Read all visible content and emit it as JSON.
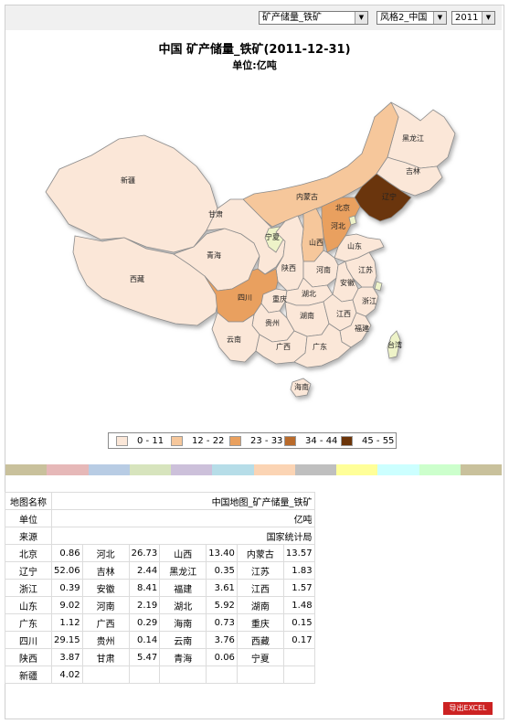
{
  "selectors": {
    "indicator": "矿产储量_铁矿",
    "style": "风格2_中国",
    "year": "2011"
  },
  "title": "中国 矿产储量_铁矿(2011-12-31)",
  "unit_line": "单位:亿吨",
  "legend": [
    {
      "label": "0 - 11",
      "color": "#fbe7d8"
    },
    {
      "label": "12 - 22",
      "color": "#f6c79b"
    },
    {
      "label": "23 - 33",
      "color": "#e9a05e"
    },
    {
      "label": "34 - 44",
      "color": "#b96a2a"
    },
    {
      "label": "45 - 55",
      "color": "#6b3408"
    }
  ],
  "provinces": [
    {
      "name": "黑龙江",
      "value": 0.35
    },
    {
      "name": "吉林",
      "value": 2.44
    },
    {
      "name": "辽宁",
      "value": 52.06
    },
    {
      "name": "内蒙古",
      "value": 13.57
    },
    {
      "name": "新疆",
      "value": 4.02
    },
    {
      "name": "西藏",
      "value": 0.17
    },
    {
      "name": "青海",
      "value": 0.06
    },
    {
      "name": "甘肃",
      "value": 5.47
    },
    {
      "name": "宁夏",
      "value": null
    },
    {
      "name": "北京",
      "value": 0.86
    },
    {
      "name": "河北",
      "value": 26.73
    },
    {
      "name": "山西",
      "value": 13.4
    },
    {
      "name": "山东",
      "value": 9.02
    },
    {
      "name": "陕西",
      "value": 3.87
    },
    {
      "name": "河南",
      "value": 2.19
    },
    {
      "name": "安徽",
      "value": 8.41
    },
    {
      "name": "四川",
      "value": 29.15
    },
    {
      "name": "重庆",
      "value": 0.15
    },
    {
      "name": "湖北",
      "value": 5.92
    },
    {
      "name": "湖南",
      "value": 1.48
    },
    {
      "name": "江西",
      "value": 1.57
    },
    {
      "name": "浙江",
      "value": 0.39
    },
    {
      "name": "江苏",
      "value": 1.83
    },
    {
      "name": "福建",
      "value": 3.61
    },
    {
      "name": "贵州",
      "value": 0.14
    },
    {
      "name": "云南",
      "value": 3.76
    },
    {
      "name": "广西",
      "value": 0.29
    },
    {
      "name": "广东",
      "value": 1.12
    },
    {
      "name": "海南",
      "value": 0.73
    },
    {
      "name": "天津",
      "value": null
    },
    {
      "name": "上海",
      "value": null
    },
    {
      "name": "台湾",
      "value": null
    }
  ],
  "strip_colors": [
    "#c9c19c",
    "#e6b8b8",
    "#b8cce4",
    "#d7e4bd",
    "#ccc0da",
    "#b6dde8",
    "#fbd4b4",
    "#bfbfbf",
    "#ffff99",
    "#ccffff",
    "#ccffcc",
    "#c9c19c"
  ],
  "table": {
    "rows_meta": [
      {
        "key": "地图名称",
        "value": "中国地图_矿产储量_铁矿"
      },
      {
        "key": "单位",
        "value": "亿吨"
      },
      {
        "key": "来源",
        "value": "国家统计局"
      }
    ],
    "grid": [
      [
        [
          "北京",
          "0.86"
        ],
        [
          "河北",
          "26.73"
        ],
        [
          "山西",
          "13.40"
        ],
        [
          "内蒙古",
          "13.57"
        ]
      ],
      [
        [
          "辽宁",
          "52.06"
        ],
        [
          "吉林",
          "2.44"
        ],
        [
          "黑龙江",
          "0.35"
        ],
        [
          "江苏",
          "1.83"
        ]
      ],
      [
        [
          "浙江",
          "0.39"
        ],
        [
          "安徽",
          "8.41"
        ],
        [
          "福建",
          "3.61"
        ],
        [
          "江西",
          "1.57"
        ]
      ],
      [
        [
          "山东",
          "9.02"
        ],
        [
          "河南",
          "2.19"
        ],
        [
          "湖北",
          "5.92"
        ],
        [
          "湖南",
          "1.48"
        ]
      ],
      [
        [
          "广东",
          "1.12"
        ],
        [
          "广西",
          "0.29"
        ],
        [
          "海南",
          "0.73"
        ],
        [
          "重庆",
          "0.15"
        ]
      ],
      [
        [
          "四川",
          "29.15"
        ],
        [
          "贵州",
          "0.14"
        ],
        [
          "云南",
          "3.76"
        ],
        [
          "西藏",
          "0.17"
        ]
      ],
      [
        [
          "陕西",
          "3.87"
        ],
        [
          "甘肃",
          "5.47"
        ],
        [
          "青海",
          "0.06"
        ],
        [
          "宁夏",
          ""
        ]
      ],
      [
        [
          "新疆",
          "4.02"
        ],
        [
          "",
          ""
        ],
        [
          "",
          ""
        ],
        [
          "",
          ""
        ]
      ]
    ]
  },
  "export_label": "导出EXCEL"
}
